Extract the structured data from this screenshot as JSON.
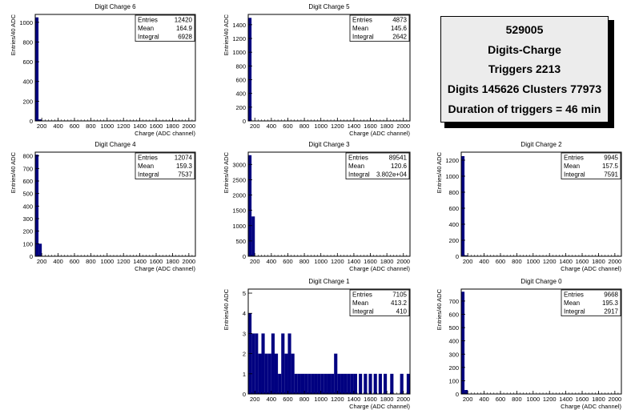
{
  "colors": {
    "bar": "#000080",
    "frame": "#000000",
    "background": "#ffffff",
    "info_bg": "#ececec"
  },
  "info": {
    "run": "529005",
    "title": "Digits-Charge",
    "triggers": "Triggers 2213",
    "digits": "Digits 145626 Clusters 77973",
    "duration": "Duration of triggers = 46 min"
  },
  "chart_data": [
    {
      "type": "bar",
      "title": "Digit Charge 6",
      "xlabel": "Charge (ADC channel)",
      "ylabel": "Entries/40 ADC",
      "xlim": [
        120,
        2080
      ],
      "ylim": [
        0,
        1080
      ],
      "xticks": [
        200,
        400,
        600,
        800,
        1000,
        1200,
        1400,
        1600,
        1800,
        2000
      ],
      "yticks": [
        0,
        200,
        400,
        600,
        800,
        1000
      ],
      "stats": [
        [
          "Entries",
          "12420"
        ],
        [
          "Mean",
          "164.9"
        ],
        [
          "Integral",
          "6928"
        ]
      ],
      "bars": [
        [
          120,
          160,
          1050
        ],
        [
          160,
          200,
          15
        ]
      ]
    },
    {
      "type": "bar",
      "title": "Digit Charge 5",
      "xlabel": "Charge (ADC channel)",
      "ylabel": "Entries/40 ADC",
      "xlim": [
        120,
        2080
      ],
      "ylim": [
        0,
        1550
      ],
      "xticks": [
        200,
        400,
        600,
        800,
        1000,
        1200,
        1400,
        1600,
        1800,
        2000
      ],
      "yticks": [
        0,
        200,
        400,
        600,
        800,
        1000,
        1200,
        1400
      ],
      "stats": [
        [
          "Entries",
          "4873"
        ],
        [
          "Mean",
          "145.6"
        ],
        [
          "Integral",
          "2642"
        ]
      ],
      "bars": [
        [
          120,
          160,
          1500
        ]
      ]
    },
    {
      "type": "bar",
      "title": "Digit Charge 4",
      "xlabel": "Charge (ADC channel)",
      "ylabel": "Entries/40 ADC",
      "xlim": [
        120,
        2080
      ],
      "ylim": [
        0,
        830
      ],
      "xticks": [
        200,
        400,
        600,
        800,
        1000,
        1200,
        1400,
        1600,
        1800,
        2000
      ],
      "yticks": [
        0,
        100,
        200,
        300,
        400,
        500,
        600,
        700,
        800
      ],
      "stats": [
        [
          "Entries",
          "12074"
        ],
        [
          "Mean",
          "159.3"
        ],
        [
          "Integral",
          "7537"
        ]
      ],
      "bars": [
        [
          120,
          160,
          810
        ],
        [
          160,
          200,
          100
        ]
      ]
    },
    {
      "type": "bar",
      "title": "Digit Charge 3",
      "xlabel": "Charge (ADC channel)",
      "ylabel": "Entries/40 ADC",
      "xlim": [
        120,
        2080
      ],
      "ylim": [
        0,
        3400
      ],
      "xticks": [
        200,
        400,
        600,
        800,
        1000,
        1200,
        1400,
        1600,
        1800,
        2000
      ],
      "yticks": [
        0,
        500,
        1000,
        1500,
        2000,
        2500,
        3000
      ],
      "stats": [
        [
          "Entries",
          "89541"
        ],
        [
          "Mean",
          "120.6"
        ],
        [
          "Integral",
          "3.802e+04"
        ]
      ],
      "bars": [
        [
          120,
          160,
          3300
        ],
        [
          160,
          200,
          1300
        ]
      ]
    },
    {
      "type": "bar",
      "title": "Digit Charge 2",
      "xlabel": "Charge (ADC channel)",
      "ylabel": "Entries/40 ADC",
      "xlim": [
        120,
        2080
      ],
      "ylim": [
        0,
        1300
      ],
      "xticks": [
        200,
        400,
        600,
        800,
        1000,
        1200,
        1400,
        1600,
        1800,
        2000
      ],
      "yticks": [
        0,
        200,
        400,
        600,
        800,
        1000,
        1200
      ],
      "stats": [
        [
          "Entries",
          "9945"
        ],
        [
          "Mean",
          "157.5"
        ],
        [
          "Integral",
          "7591"
        ]
      ],
      "bars": [
        [
          120,
          160,
          1250
        ],
        [
          160,
          200,
          12
        ]
      ]
    },
    {
      "type": "bar",
      "title": "Digit Charge 1",
      "xlabel": "Charge (ADC channel)",
      "ylabel": "Entries/40 ADC",
      "xlim": [
        120,
        2080
      ],
      "ylim": [
        0,
        5.2
      ],
      "xticks": [
        200,
        400,
        600,
        800,
        1000,
        1200,
        1400,
        1600,
        1800,
        2000
      ],
      "yticks": [
        0,
        1,
        2,
        3,
        4,
        5
      ],
      "stats": [
        [
          "Entries",
          "7105"
        ],
        [
          "Mean",
          "413.2"
        ],
        [
          "Integral",
          "410"
        ]
      ],
      "bars": [
        [
          120,
          160,
          4
        ],
        [
          160,
          200,
          3
        ],
        [
          200,
          240,
          3
        ],
        [
          240,
          280,
          2
        ],
        [
          280,
          320,
          3
        ],
        [
          320,
          360,
          2
        ],
        [
          360,
          400,
          2
        ],
        [
          400,
          440,
          3
        ],
        [
          440,
          480,
          2
        ],
        [
          480,
          520,
          1
        ],
        [
          520,
          560,
          3
        ],
        [
          560,
          600,
          2
        ],
        [
          600,
          640,
          3
        ],
        [
          640,
          680,
          2
        ],
        [
          680,
          720,
          1
        ],
        [
          720,
          760,
          1
        ],
        [
          760,
          800,
          1
        ],
        [
          800,
          840,
          1
        ],
        [
          840,
          880,
          1
        ],
        [
          880,
          920,
          1
        ],
        [
          920,
          960,
          1
        ],
        [
          960,
          1000,
          1
        ],
        [
          1000,
          1040,
          1
        ],
        [
          1040,
          1080,
          1
        ],
        [
          1080,
          1120,
          1
        ],
        [
          1120,
          1160,
          1
        ],
        [
          1160,
          1200,
          2
        ],
        [
          1200,
          1240,
          1
        ],
        [
          1240,
          1280,
          1
        ],
        [
          1280,
          1320,
          1
        ],
        [
          1320,
          1360,
          1
        ],
        [
          1360,
          1400,
          1
        ],
        [
          1400,
          1440,
          1
        ],
        [
          1460,
          1500,
          1
        ],
        [
          1520,
          1560,
          1
        ],
        [
          1580,
          1620,
          1
        ],
        [
          1640,
          1680,
          1
        ],
        [
          1700,
          1740,
          1
        ],
        [
          1760,
          1800,
          1
        ],
        [
          1840,
          1880,
          1
        ],
        [
          1960,
          2000,
          1
        ],
        [
          2040,
          2080,
          1
        ]
      ]
    },
    {
      "type": "bar",
      "title": "Digit Charge 0",
      "xlabel": "Charge (ADC channel)",
      "ylabel": "Entries/40 ADC",
      "xlim": [
        120,
        2080
      ],
      "ylim": [
        0,
        790
      ],
      "xticks": [
        200,
        400,
        600,
        800,
        1000,
        1200,
        1400,
        1600,
        1800,
        2000
      ],
      "yticks": [
        0,
        100,
        200,
        300,
        400,
        500,
        600,
        700
      ],
      "stats": [
        [
          "Entries",
          "9668"
        ],
        [
          "Mean",
          "195.3"
        ],
        [
          "Integral",
          "2917"
        ]
      ],
      "bars": [
        [
          120,
          160,
          770
        ],
        [
          160,
          200,
          30
        ]
      ]
    }
  ]
}
